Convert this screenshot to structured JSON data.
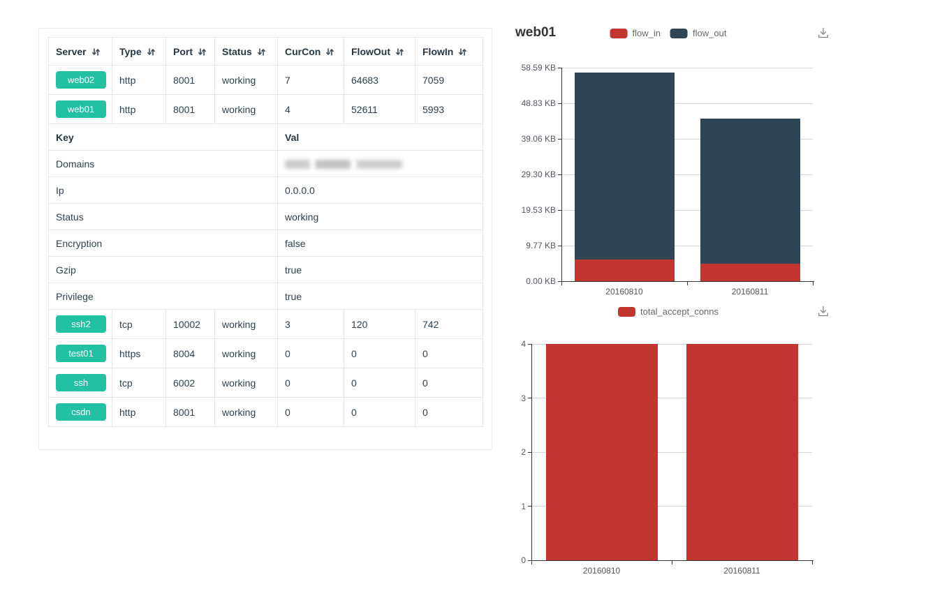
{
  "colors": {
    "server_button": "#21c1a2",
    "flow_in": "#c23531",
    "flow_out": "#2f4554",
    "total_accept_conns": "#c23531",
    "axis": "#333333",
    "gridline": "#d5d5dc",
    "table_border": "#e3e7ea",
    "table_text": "#2e4050"
  },
  "icons": {
    "sort": "sort-icon",
    "download": "download-icon"
  },
  "table": {
    "columns": [
      {
        "label": "Server",
        "sortable": true
      },
      {
        "label": "Type",
        "sortable": true
      },
      {
        "label": "Port",
        "sortable": true
      },
      {
        "label": "Status",
        "sortable": true
      },
      {
        "label": "CurCon",
        "sortable": true
      },
      {
        "label": "FlowOut",
        "sortable": true
      },
      {
        "label": "FlowIn",
        "sortable": true
      }
    ],
    "rows": [
      {
        "type": "server",
        "server": "web02",
        "cells": [
          "http",
          "8001",
          "working",
          "7",
          "64683",
          "7059"
        ]
      },
      {
        "type": "server",
        "server": "web01",
        "cells": [
          "http",
          "8001",
          "working",
          "4",
          "52611",
          "5993"
        ]
      },
      {
        "type": "kv_header",
        "key": "Key",
        "val": "Val"
      },
      {
        "type": "kv",
        "key": "Domains",
        "val": "",
        "redacted": true
      },
      {
        "type": "kv",
        "key": "Ip",
        "val": "0.0.0.0"
      },
      {
        "type": "kv",
        "key": "Status",
        "val": "working"
      },
      {
        "type": "kv",
        "key": "Encryption",
        "val": "false"
      },
      {
        "type": "kv",
        "key": "Gzip",
        "val": "true"
      },
      {
        "type": "kv",
        "key": "Privilege",
        "val": "true"
      },
      {
        "type": "server",
        "server": "ssh2",
        "cells": [
          "tcp",
          "10002",
          "working",
          "3",
          "120",
          "742"
        ]
      },
      {
        "type": "server",
        "server": "test01",
        "cells": [
          "https",
          "8004",
          "working",
          "0",
          "0",
          "0"
        ]
      },
      {
        "type": "server",
        "server": "ssh",
        "cells": [
          "tcp",
          "6002",
          "working",
          "0",
          "0",
          "0"
        ]
      },
      {
        "type": "server",
        "server": "csdn",
        "cells": [
          "http",
          "8001",
          "working",
          "0",
          "0",
          "0"
        ]
      }
    ]
  },
  "chart_data": [
    {
      "type": "bar",
      "stacked": true,
      "title": "web01",
      "categories": [
        "20160810",
        "20160811"
      ],
      "series": [
        {
          "name": "flow_in",
          "color": "#c23531",
          "values": [
            5.85,
            4.79
          ]
        },
        {
          "name": "flow_out",
          "color": "#2f4554",
          "values": [
            51.38,
            39.83
          ]
        }
      ],
      "unit": "KB",
      "xlabel": "",
      "ylabel": "",
      "ylim": [
        0,
        58.59
      ],
      "yticks": [
        "0.00 KB",
        "9.77 KB",
        "19.53 KB",
        "29.30 KB",
        "39.06 KB",
        "48.83 KB",
        "58.59 KB"
      ],
      "legend_position": "top-center",
      "grid": true
    },
    {
      "type": "bar",
      "stacked": false,
      "title": "",
      "categories": [
        "20160810",
        "20160811"
      ],
      "series": [
        {
          "name": "total_accept_conns",
          "color": "#c23531",
          "values": [
            4,
            4
          ]
        }
      ],
      "unit": "",
      "xlabel": "",
      "ylabel": "",
      "ylim": [
        0,
        4
      ],
      "yticks": [
        "0",
        "1",
        "2",
        "3",
        "4"
      ],
      "legend_position": "top-center",
      "grid": true
    }
  ]
}
